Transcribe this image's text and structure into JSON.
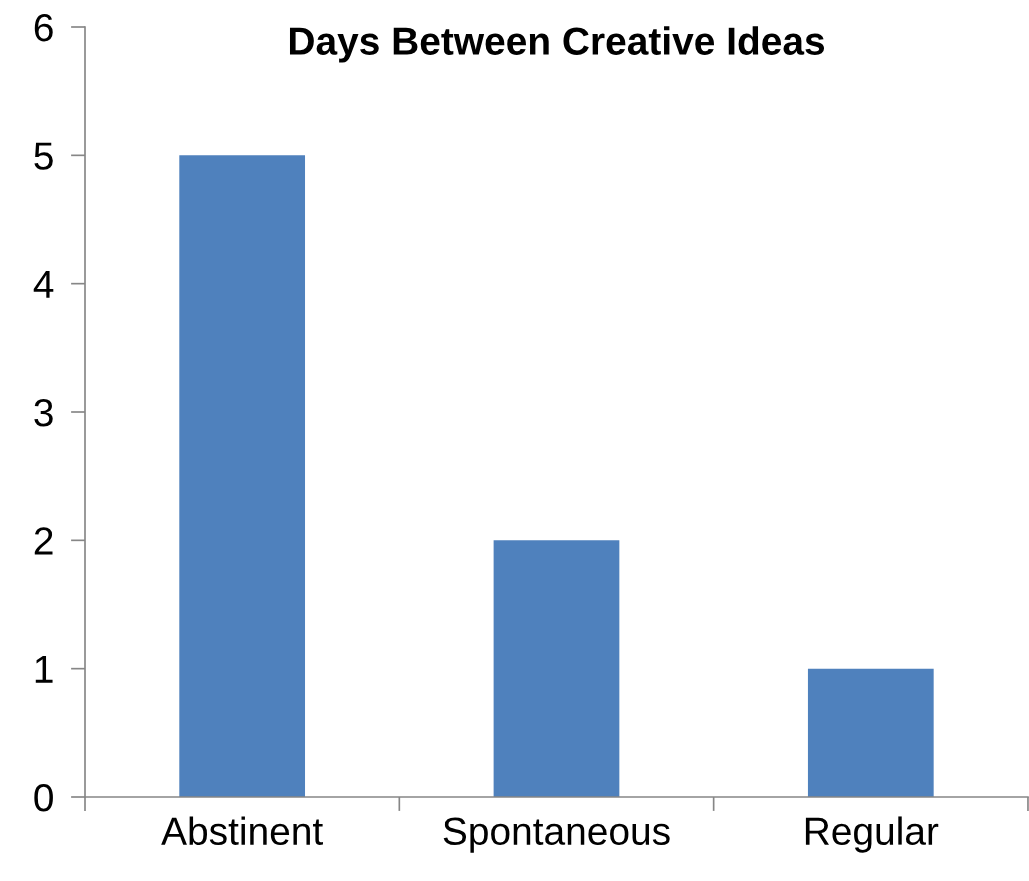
{
  "chart_data": {
    "type": "bar",
    "title": "Days Between Creative Ideas",
    "categories": [
      "Abstinent",
      "Spontaneous",
      "Regular"
    ],
    "values": [
      5,
      2,
      1
    ],
    "color": "#4f81bd",
    "ylim": [
      0,
      6
    ],
    "yticks": [
      0,
      1,
      2,
      3,
      4,
      5,
      6
    ],
    "grid": false,
    "legend": false
  }
}
